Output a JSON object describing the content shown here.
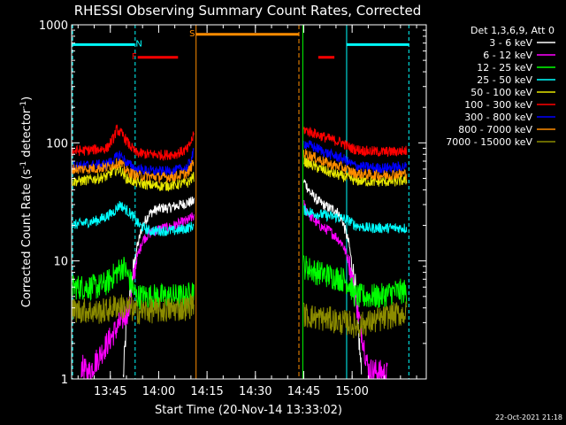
{
  "chart_data": {
    "type": "line",
    "title": "RHESSI Observing Summary Count Rates, Corrected",
    "xlabel": "Start Time (20-Nov-14 13:33:02)",
    "ylabel_main": "Corrected Count Rate (s",
    "ylabel_sup1": "-1",
    "ylabel_mid": " detector",
    "ylabel_sup2": "-1",
    "ylabel_end": ")",
    "ylog": true,
    "ylim": [
      1,
      1000
    ],
    "xlim_minutes": [
      0,
      110
    ],
    "x_ticks": [
      {
        "label": "13:45",
        "minute": 12
      },
      {
        "label": "14:00",
        "minute": 27
      },
      {
        "label": "14:15",
        "minute": 42
      },
      {
        "label": "14:30",
        "minute": 57
      },
      {
        "label": "14:45",
        "minute": 72
      },
      {
        "label": "15:00",
        "minute": 87
      }
    ],
    "y_ticks": [
      {
        "label": "1",
        "value": 1
      },
      {
        "label": "10",
        "value": 10
      },
      {
        "label": "100",
        "value": 100
      },
      {
        "label": "1000",
        "value": 1000
      }
    ],
    "legend_title": "Det 1,3,6,9, Att 0",
    "series": [
      {
        "name": "3 - 6 keV",
        "color": "#ffffff",
        "seg1": [
          [
            16,
            1
          ],
          [
            17,
            3
          ],
          [
            18,
            5
          ],
          [
            20,
            12
          ],
          [
            22,
            20
          ],
          [
            24,
            25
          ],
          [
            26,
            27
          ],
          [
            28,
            28
          ],
          [
            30,
            28
          ],
          [
            32,
            29
          ],
          [
            34,
            30
          ],
          [
            36,
            31
          ],
          [
            38,
            32
          ]
        ],
        "seg2": [
          [
            72,
            48
          ],
          [
            74,
            38
          ],
          [
            76,
            33
          ],
          [
            78,
            30
          ],
          [
            80,
            28
          ],
          [
            82,
            27
          ],
          [
            84,
            22
          ],
          [
            86,
            14
          ],
          [
            88,
            6
          ],
          [
            90,
            1
          ]
        ]
      },
      {
        "name": "6 - 12 keV",
        "color": "#ff00ff",
        "seg1": [
          [
            3,
            1.3
          ],
          [
            5,
            1.1
          ],
          [
            18,
            4
          ],
          [
            20,
            10
          ],
          [
            22,
            15
          ],
          [
            24,
            17
          ],
          [
            26,
            18
          ],
          [
            28,
            19
          ],
          [
            30,
            19
          ],
          [
            32,
            20
          ],
          [
            34,
            21
          ],
          [
            36,
            22
          ],
          [
            38,
            24
          ]
        ],
        "seg2": [
          [
            72,
            30
          ],
          [
            74,
            24
          ],
          [
            76,
            21
          ],
          [
            78,
            19
          ],
          [
            80,
            18
          ],
          [
            82,
            16
          ],
          [
            84,
            14
          ],
          [
            86,
            10
          ],
          [
            88,
            5
          ],
          [
            92,
            1.2
          ],
          [
            98,
            1.1
          ]
        ]
      },
      {
        "name": "12 - 25 keV",
        "color": "#00ff00",
        "seg1": [
          [
            0,
            6
          ],
          [
            4,
            6
          ],
          [
            8,
            6
          ],
          [
            11,
            6.5
          ],
          [
            12,
            7
          ],
          [
            14,
            8
          ],
          [
            16,
            9
          ],
          [
            18,
            7
          ],
          [
            20,
            5
          ],
          [
            24,
            5
          ],
          [
            28,
            5
          ],
          [
            32,
            5
          ],
          [
            36,
            5
          ],
          [
            38,
            6
          ]
        ],
        "seg2": [
          [
            72,
            9
          ],
          [
            76,
            8
          ],
          [
            80,
            7.5
          ],
          [
            84,
            7
          ],
          [
            86,
            6.5
          ],
          [
            88,
            5
          ],
          [
            92,
            5
          ],
          [
            96,
            5
          ],
          [
            100,
            5.5
          ],
          [
            104,
            5.5
          ]
        ]
      },
      {
        "name": "25 - 50 keV",
        "color": "#00ffff",
        "seg1": [
          [
            0,
            20
          ],
          [
            4,
            21
          ],
          [
            8,
            22
          ],
          [
            11,
            24
          ],
          [
            13,
            26
          ],
          [
            15,
            30
          ],
          [
            17,
            27
          ],
          [
            19,
            24
          ],
          [
            21,
            20
          ],
          [
            24,
            18
          ],
          [
            28,
            18
          ],
          [
            32,
            18
          ],
          [
            36,
            19
          ],
          [
            38,
            20
          ]
        ],
        "seg2": [
          [
            72,
            27
          ],
          [
            76,
            25
          ],
          [
            80,
            24
          ],
          [
            84,
            23
          ],
          [
            86,
            22
          ],
          [
            88,
            20
          ],
          [
            92,
            19
          ],
          [
            96,
            19
          ],
          [
            100,
            19
          ],
          [
            104,
            19
          ]
        ]
      },
      {
        "name": "50 - 100 keV",
        "color": "#e6e600",
        "seg1": [
          [
            0,
            47
          ],
          [
            4,
            48
          ],
          [
            8,
            50
          ],
          [
            11,
            52
          ],
          [
            13,
            58
          ],
          [
            15,
            60
          ],
          [
            17,
            50
          ],
          [
            20,
            46
          ],
          [
            24,
            44
          ],
          [
            28,
            43
          ],
          [
            32,
            44
          ],
          [
            36,
            46
          ],
          [
            38,
            52
          ]
        ],
        "seg2": [
          [
            72,
            70
          ],
          [
            76,
            62
          ],
          [
            80,
            56
          ],
          [
            84,
            52
          ],
          [
            86,
            50
          ],
          [
            88,
            48
          ],
          [
            92,
            47
          ],
          [
            96,
            47
          ],
          [
            100,
            47
          ],
          [
            104,
            48
          ]
        ]
      },
      {
        "name": "100 - 300 keV",
        "color": "#ff0000",
        "seg1": [
          [
            0,
            85
          ],
          [
            4,
            86
          ],
          [
            8,
            88
          ],
          [
            11,
            90
          ],
          [
            13,
            110
          ],
          [
            14,
            130
          ],
          [
            16,
            115
          ],
          [
            18,
            95
          ],
          [
            20,
            82
          ],
          [
            24,
            80
          ],
          [
            28,
            79
          ],
          [
            32,
            80
          ],
          [
            36,
            88
          ],
          [
            38,
            118
          ]
        ],
        "seg2": [
          [
            72,
            130
          ],
          [
            76,
            118
          ],
          [
            80,
            108
          ],
          [
            84,
            100
          ],
          [
            86,
            92
          ],
          [
            88,
            88
          ],
          [
            92,
            85
          ],
          [
            96,
            84
          ],
          [
            100,
            84
          ],
          [
            104,
            86
          ]
        ]
      },
      {
        "name": "300 - 800 keV",
        "color": "#0000ff",
        "seg1": [
          [
            0,
            64
          ],
          [
            4,
            64
          ],
          [
            8,
            65
          ],
          [
            11,
            66
          ],
          [
            13,
            72
          ],
          [
            15,
            80
          ],
          [
            17,
            68
          ],
          [
            20,
            60
          ],
          [
            24,
            58
          ],
          [
            28,
            57
          ],
          [
            32,
            58
          ],
          [
            36,
            62
          ],
          [
            38,
            85
          ]
        ],
        "seg2": [
          [
            72,
            100
          ],
          [
            76,
            90
          ],
          [
            80,
            80
          ],
          [
            84,
            74
          ],
          [
            86,
            68
          ],
          [
            88,
            64
          ],
          [
            92,
            62
          ],
          [
            96,
            61
          ],
          [
            100,
            62
          ],
          [
            104,
            63
          ]
        ]
      },
      {
        "name": "800 - 7000 keV",
        "color": "#ff8c00",
        "seg1": [
          [
            0,
            60
          ],
          [
            4,
            60
          ],
          [
            8,
            61
          ],
          [
            11,
            62
          ],
          [
            13,
            66
          ],
          [
            15,
            68
          ],
          [
            17,
            58
          ],
          [
            20,
            53
          ],
          [
            24,
            52
          ],
          [
            28,
            51
          ],
          [
            32,
            52
          ],
          [
            36,
            55
          ],
          [
            38,
            70
          ]
        ],
        "seg2": [
          [
            72,
            82
          ],
          [
            76,
            74
          ],
          [
            80,
            66
          ],
          [
            84,
            62
          ],
          [
            86,
            58
          ],
          [
            88,
            55
          ],
          [
            92,
            54
          ],
          [
            96,
            53
          ],
          [
            100,
            54
          ],
          [
            104,
            55
          ]
        ]
      },
      {
        "name": "7000 - 15000 keV",
        "color": "#8c8c00",
        "seg1": [
          [
            0,
            3.8
          ],
          [
            4,
            3.8
          ],
          [
            8,
            3.7
          ],
          [
            11,
            3.8
          ],
          [
            14,
            4.2
          ],
          [
            18,
            4.0
          ],
          [
            20,
            3.7
          ],
          [
            24,
            3.8
          ],
          [
            28,
            3.8
          ],
          [
            32,
            3.9
          ],
          [
            36,
            4.0
          ],
          [
            38,
            4.5
          ]
        ],
        "seg2": [
          [
            72,
            3.5
          ],
          [
            76,
            3.3
          ],
          [
            80,
            3.2
          ],
          [
            84,
            3.0
          ],
          [
            86,
            3.0
          ],
          [
            88,
            2.8
          ],
          [
            92,
            3.0
          ],
          [
            96,
            3.2
          ],
          [
            100,
            3.5
          ],
          [
            104,
            3.6
          ]
        ]
      }
    ],
    "vlines": [
      {
        "minute": 0.3,
        "color": "#00ffff",
        "dash": "4,3"
      },
      {
        "minute": 19.7,
        "color": "#00ffff",
        "dash": "4,3"
      },
      {
        "minute": 38.6,
        "color": "#ff8c00",
        "dash": "none"
      },
      {
        "minute": 70.5,
        "color": "#ff8c00",
        "dash": "5,3"
      },
      {
        "minute": 71.7,
        "color": "#00ff00",
        "dash": "none"
      },
      {
        "minute": 85.3,
        "color": "#00ffff",
        "dash": "none"
      },
      {
        "minute": 104.6,
        "color": "#00ffff",
        "dash": "4,3"
      }
    ],
    "bars": [
      {
        "label": "",
        "color": "#00ffff",
        "start": 0,
        "end": 19.5,
        "level": 680
      },
      {
        "label": "N",
        "color": "#00ffff",
        "start": 19.5,
        "end": 19.5,
        "level": 680
      },
      {
        "label": "F",
        "color": "#ff0000",
        "start": 20.5,
        "end": 33,
        "level": 530
      },
      {
        "label": "S",
        "color": "#ff8c00",
        "start": 38.5,
        "end": 70.5,
        "level": 830
      },
      {
        "label": "",
        "color": "#ff0000",
        "start": 76.5,
        "end": 81.5,
        "level": 530
      },
      {
        "label": "",
        "color": "#00ffff",
        "start": 85.3,
        "end": 104.7,
        "level": 680
      }
    ]
  },
  "footer_date": "22-Oct-2021 21:18"
}
